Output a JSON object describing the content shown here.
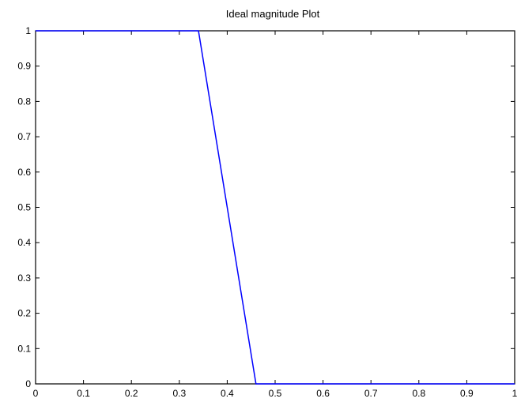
{
  "chart_data": {
    "type": "line",
    "title": "Ideal magnitude Plot",
    "xlabel": "",
    "ylabel": "",
    "xlim": [
      0,
      1
    ],
    "ylim": [
      0,
      1
    ],
    "x_ticks": [
      "0",
      "0.1",
      "0.2",
      "0.3",
      "0.4",
      "0.5",
      "0.6",
      "0.7",
      "0.8",
      "0.9",
      "1"
    ],
    "y_ticks": [
      "0",
      "0.1",
      "0.2",
      "0.3",
      "0.4",
      "0.5",
      "0.6",
      "0.7",
      "0.8",
      "0.9",
      "1"
    ],
    "grid": false,
    "series": [
      {
        "color": "#0000ff",
        "x": [
          0,
          0.34,
          0.46,
          1
        ],
        "y": [
          1,
          1,
          0,
          0
        ]
      }
    ]
  }
}
